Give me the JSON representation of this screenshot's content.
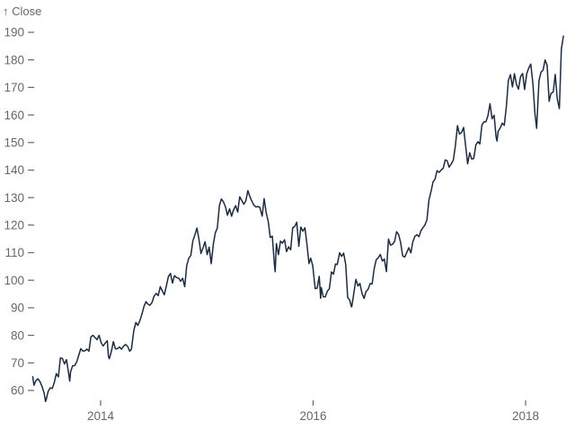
{
  "chart_data": {
    "type": "line",
    "title": "",
    "axis_title": "↑ Close",
    "ylabel": "Close",
    "xlabel": "",
    "grid": false,
    "legend": false,
    "line_color": "#1c2b3f",
    "axis_color": "#5f6971",
    "x_ticks": [
      2014,
      2016,
      2018
    ],
    "x_tick_labels": [
      "2014",
      "2016",
      "2018"
    ],
    "y_ticks": [
      60,
      70,
      80,
      90,
      100,
      110,
      120,
      130,
      140,
      150,
      160,
      170,
      180,
      190
    ],
    "x_domain": [
      "2013-05-13",
      "2018-05-11"
    ],
    "y_domain": [
      55,
      193
    ],
    "points": [
      [
        "2013-05-13",
        64.96
      ],
      [
        "2013-05-17",
        61.89
      ],
      [
        "2013-05-24",
        63.59
      ],
      [
        "2013-05-31",
        64.25
      ],
      [
        "2013-06-07",
        63.12
      ],
      [
        "2013-06-14",
        61.44
      ],
      [
        "2013-06-21",
        59.07
      ],
      [
        "2013-06-26",
        55.96
      ],
      [
        "2013-06-28",
        56.65
      ],
      [
        "2013-07-05",
        59.63
      ],
      [
        "2013-07-12",
        60.93
      ],
      [
        "2013-07-19",
        60.71
      ],
      [
        "2013-07-26",
        62.83
      ],
      [
        "2013-08-02",
        66.08
      ],
      [
        "2013-08-09",
        64.92
      ],
      [
        "2013-08-16",
        71.76
      ],
      [
        "2013-08-23",
        71.57
      ],
      [
        "2013-08-30",
        69.6
      ],
      [
        "2013-09-06",
        71.17
      ],
      [
        "2013-09-13",
        66.41
      ],
      [
        "2013-09-17",
        63.38
      ],
      [
        "2013-09-20",
        66.77
      ],
      [
        "2013-09-27",
        68.96
      ],
      [
        "2013-10-04",
        69.0
      ],
      [
        "2013-10-11",
        70.4
      ],
      [
        "2013-10-18",
        72.7
      ],
      [
        "2013-10-25",
        75.14
      ],
      [
        "2013-11-01",
        74.29
      ],
      [
        "2013-11-08",
        74.37
      ],
      [
        "2013-11-15",
        74.99
      ],
      [
        "2013-11-22",
        74.26
      ],
      [
        "2013-11-29",
        79.44
      ],
      [
        "2013-12-06",
        80.0
      ],
      [
        "2013-12-13",
        79.2
      ],
      [
        "2013-12-20",
        78.43
      ],
      [
        "2013-12-27",
        80.01
      ],
      [
        "2014-01-03",
        77.28
      ],
      [
        "2014-01-10",
        76.13
      ],
      [
        "2014-01-17",
        77.24
      ],
      [
        "2014-01-24",
        78.01
      ],
      [
        "2014-01-28",
        72.36
      ],
      [
        "2014-01-31",
        71.51
      ],
      [
        "2014-02-07",
        74.24
      ],
      [
        "2014-02-14",
        77.71
      ],
      [
        "2014-02-21",
        75.04
      ],
      [
        "2014-02-28",
        75.18
      ],
      [
        "2014-03-07",
        75.77
      ],
      [
        "2014-03-14",
        74.96
      ],
      [
        "2014-03-21",
        76.12
      ],
      [
        "2014-03-28",
        76.69
      ],
      [
        "2014-04-04",
        75.97
      ],
      [
        "2014-04-11",
        74.23
      ],
      [
        "2014-04-17",
        74.99
      ],
      [
        "2014-04-25",
        81.71
      ],
      [
        "2014-05-02",
        84.65
      ],
      [
        "2014-05-09",
        83.65
      ],
      [
        "2014-05-16",
        85.36
      ],
      [
        "2014-05-23",
        87.73
      ],
      [
        "2014-05-30",
        90.43
      ],
      [
        "2014-06-06",
        92.22
      ],
      [
        "2014-06-13",
        91.28
      ],
      [
        "2014-06-20",
        90.91
      ],
      [
        "2014-06-27",
        91.98
      ],
      [
        "2014-07-03",
        94.03
      ],
      [
        "2014-07-11",
        95.22
      ],
      [
        "2014-07-18",
        94.43
      ],
      [
        "2014-07-25",
        97.67
      ],
      [
        "2014-08-01",
        96.13
      ],
      [
        "2014-08-08",
        94.74
      ],
      [
        "2014-08-15",
        97.98
      ],
      [
        "2014-08-22",
        101.32
      ],
      [
        "2014-08-29",
        102.5
      ],
      [
        "2014-09-05",
        98.97
      ],
      [
        "2014-09-12",
        101.66
      ],
      [
        "2014-09-19",
        100.96
      ],
      [
        "2014-09-26",
        100.75
      ],
      [
        "2014-10-03",
        99.62
      ],
      [
        "2014-10-10",
        100.73
      ],
      [
        "2014-10-17",
        97.67
      ],
      [
        "2014-10-24",
        105.22
      ],
      [
        "2014-10-31",
        108.0
      ],
      [
        "2014-11-07",
        109.01
      ],
      [
        "2014-11-14",
        114.18
      ],
      [
        "2014-11-21",
        116.47
      ],
      [
        "2014-11-28",
        118.93
      ],
      [
        "2014-12-05",
        115.0
      ],
      [
        "2014-12-12",
        109.73
      ],
      [
        "2014-12-19",
        111.78
      ],
      [
        "2014-12-26",
        113.99
      ],
      [
        "2015-01-02",
        109.33
      ],
      [
        "2015-01-09",
        112.01
      ],
      [
        "2015-01-16",
        105.99
      ],
      [
        "2015-01-23",
        112.98
      ],
      [
        "2015-01-30",
        117.16
      ],
      [
        "2015-02-06",
        118.93
      ],
      [
        "2015-02-13",
        127.08
      ],
      [
        "2015-02-20",
        129.5
      ],
      [
        "2015-02-27",
        128.46
      ],
      [
        "2015-03-06",
        126.6
      ],
      [
        "2015-03-13",
        123.59
      ],
      [
        "2015-03-20",
        125.9
      ],
      [
        "2015-03-27",
        123.25
      ],
      [
        "2015-04-02",
        125.32
      ],
      [
        "2015-04-10",
        127.1
      ],
      [
        "2015-04-17",
        124.75
      ],
      [
        "2015-04-24",
        130.28
      ],
      [
        "2015-05-01",
        128.95
      ],
      [
        "2015-05-08",
        127.62
      ],
      [
        "2015-05-15",
        128.77
      ],
      [
        "2015-05-22",
        132.54
      ],
      [
        "2015-05-29",
        130.28
      ],
      [
        "2015-06-05",
        128.65
      ],
      [
        "2015-06-12",
        127.17
      ],
      [
        "2015-06-19",
        126.6
      ],
      [
        "2015-06-26",
        126.75
      ],
      [
        "2015-07-02",
        126.44
      ],
      [
        "2015-07-10",
        123.28
      ],
      [
        "2015-07-17",
        129.62
      ],
      [
        "2015-07-24",
        124.5
      ],
      [
        "2015-07-31",
        121.3
      ],
      [
        "2015-08-07",
        115.52
      ],
      [
        "2015-08-14",
        115.96
      ],
      [
        "2015-08-21",
        105.76
      ],
      [
        "2015-08-24",
        103.12
      ],
      [
        "2015-08-28",
        113.29
      ],
      [
        "2015-09-04",
        109.27
      ],
      [
        "2015-09-11",
        114.21
      ],
      [
        "2015-09-18",
        113.45
      ],
      [
        "2015-09-25",
        114.71
      ],
      [
        "2015-10-02",
        110.38
      ],
      [
        "2015-10-09",
        112.12
      ],
      [
        "2015-10-16",
        111.04
      ],
      [
        "2015-10-23",
        119.08
      ],
      [
        "2015-10-30",
        119.5
      ],
      [
        "2015-11-06",
        121.06
      ],
      [
        "2015-11-13",
        112.34
      ],
      [
        "2015-11-20",
        119.3
      ],
      [
        "2015-11-27",
        117.81
      ],
      [
        "2015-12-04",
        119.03
      ],
      [
        "2015-12-11",
        113.18
      ],
      [
        "2015-12-18",
        106.03
      ],
      [
        "2015-12-24",
        108.03
      ],
      [
        "2015-12-31",
        105.26
      ],
      [
        "2016-01-08",
        96.96
      ],
      [
        "2016-01-15",
        97.13
      ],
      [
        "2016-01-22",
        101.42
      ],
      [
        "2016-01-27",
        93.42
      ],
      [
        "2016-01-29",
        97.34
      ],
      [
        "2016-02-05",
        94.02
      ],
      [
        "2016-02-12",
        93.99
      ],
      [
        "2016-02-19",
        96.04
      ],
      [
        "2016-02-26",
        96.91
      ],
      [
        "2016-03-04",
        103.01
      ],
      [
        "2016-03-11",
        102.26
      ],
      [
        "2016-03-18",
        105.92
      ],
      [
        "2016-03-24",
        105.67
      ],
      [
        "2016-04-01",
        109.99
      ],
      [
        "2016-04-08",
        108.66
      ],
      [
        "2016-04-15",
        109.85
      ],
      [
        "2016-04-22",
        105.68
      ],
      [
        "2016-04-29",
        93.74
      ],
      [
        "2016-05-06",
        92.72
      ],
      [
        "2016-05-12",
        90.34
      ],
      [
        "2016-05-13",
        90.52
      ],
      [
        "2016-05-20",
        95.22
      ],
      [
        "2016-05-27",
        100.35
      ],
      [
        "2016-06-03",
        97.92
      ],
      [
        "2016-06-10",
        98.83
      ],
      [
        "2016-06-17",
        95.33
      ],
      [
        "2016-06-24",
        93.4
      ],
      [
        "2016-07-01",
        95.89
      ],
      [
        "2016-07-08",
        96.68
      ],
      [
        "2016-07-15",
        98.78
      ],
      [
        "2016-07-22",
        98.66
      ],
      [
        "2016-07-29",
        104.21
      ],
      [
        "2016-08-05",
        107.48
      ],
      [
        "2016-08-12",
        108.18
      ],
      [
        "2016-08-19",
        109.36
      ],
      [
        "2016-08-26",
        106.94
      ],
      [
        "2016-09-02",
        107.73
      ],
      [
        "2016-09-09",
        103.13
      ],
      [
        "2016-09-16",
        114.92
      ],
      [
        "2016-09-23",
        112.71
      ],
      [
        "2016-09-30",
        113.05
      ],
      [
        "2016-10-07",
        114.06
      ],
      [
        "2016-10-14",
        117.63
      ],
      [
        "2016-10-21",
        116.6
      ],
      [
        "2016-10-28",
        113.72
      ],
      [
        "2016-11-04",
        108.84
      ],
      [
        "2016-11-11",
        108.43
      ],
      [
        "2016-11-18",
        110.06
      ],
      [
        "2016-11-25",
        111.79
      ],
      [
        "2016-12-02",
        109.9
      ],
      [
        "2016-12-09",
        113.95
      ],
      [
        "2016-12-16",
        115.97
      ],
      [
        "2016-12-23",
        116.52
      ],
      [
        "2016-12-30",
        115.82
      ],
      [
        "2017-01-06",
        117.91
      ],
      [
        "2017-01-13",
        119.04
      ],
      [
        "2017-01-20",
        120.0
      ],
      [
        "2017-01-27",
        121.95
      ],
      [
        "2017-02-03",
        129.08
      ],
      [
        "2017-02-10",
        132.12
      ],
      [
        "2017-02-17",
        135.72
      ],
      [
        "2017-02-24",
        136.66
      ],
      [
        "2017-03-03",
        139.78
      ],
      [
        "2017-03-10",
        139.14
      ],
      [
        "2017-03-17",
        139.99
      ],
      [
        "2017-03-24",
        140.64
      ],
      [
        "2017-03-31",
        143.66
      ],
      [
        "2017-04-07",
        143.34
      ],
      [
        "2017-04-13",
        141.05
      ],
      [
        "2017-04-21",
        142.27
      ],
      [
        "2017-04-28",
        143.65
      ],
      [
        "2017-05-05",
        148.96
      ],
      [
        "2017-05-12",
        156.1
      ],
      [
        "2017-05-19",
        153.06
      ],
      [
        "2017-05-26",
        153.61
      ],
      [
        "2017-06-02",
        155.45
      ],
      [
        "2017-06-09",
        148.98
      ],
      [
        "2017-06-16",
        142.27
      ],
      [
        "2017-06-23",
        146.28
      ],
      [
        "2017-06-30",
        144.02
      ],
      [
        "2017-07-07",
        144.18
      ],
      [
        "2017-07-14",
        149.04
      ],
      [
        "2017-07-21",
        150.27
      ],
      [
        "2017-07-28",
        149.5
      ],
      [
        "2017-08-04",
        156.39
      ],
      [
        "2017-08-11",
        157.48
      ],
      [
        "2017-08-18",
        157.5
      ],
      [
        "2017-08-25",
        159.86
      ],
      [
        "2017-09-01",
        164.05
      ],
      [
        "2017-09-08",
        158.63
      ],
      [
        "2017-09-15",
        159.88
      ],
      [
        "2017-09-22",
        151.89
      ],
      [
        "2017-09-25",
        150.55
      ],
      [
        "2017-09-29",
        154.12
      ],
      [
        "2017-10-06",
        155.3
      ],
      [
        "2017-10-13",
        156.99
      ],
      [
        "2017-10-20",
        156.25
      ],
      [
        "2017-10-27",
        163.05
      ],
      [
        "2017-11-03",
        172.5
      ],
      [
        "2017-11-10",
        174.67
      ],
      [
        "2017-11-17",
        170.15
      ],
      [
        "2017-11-24",
        174.97
      ],
      [
        "2017-12-01",
        171.05
      ],
      [
        "2017-12-08",
        169.37
      ],
      [
        "2017-12-15",
        173.97
      ],
      [
        "2017-12-22",
        175.01
      ],
      [
        "2017-12-29",
        169.23
      ],
      [
        "2018-01-05",
        175.0
      ],
      [
        "2018-01-12",
        177.09
      ],
      [
        "2018-01-19",
        178.46
      ],
      [
        "2018-01-26",
        171.51
      ],
      [
        "2018-02-02",
        160.5
      ],
      [
        "2018-02-08",
        155.15
      ],
      [
        "2018-02-16",
        172.43
      ],
      [
        "2018-02-23",
        175.55
      ],
      [
        "2018-03-02",
        176.21
      ],
      [
        "2018-03-09",
        179.98
      ],
      [
        "2018-03-16",
        178.02
      ],
      [
        "2018-03-23",
        164.94
      ],
      [
        "2018-03-29",
        167.78
      ],
      [
        "2018-04-06",
        168.38
      ],
      [
        "2018-04-13",
        174.73
      ],
      [
        "2018-04-20",
        165.72
      ],
      [
        "2018-04-27",
        162.32
      ],
      [
        "2018-05-04",
        183.83
      ],
      [
        "2018-05-11",
        188.59
      ]
    ]
  }
}
